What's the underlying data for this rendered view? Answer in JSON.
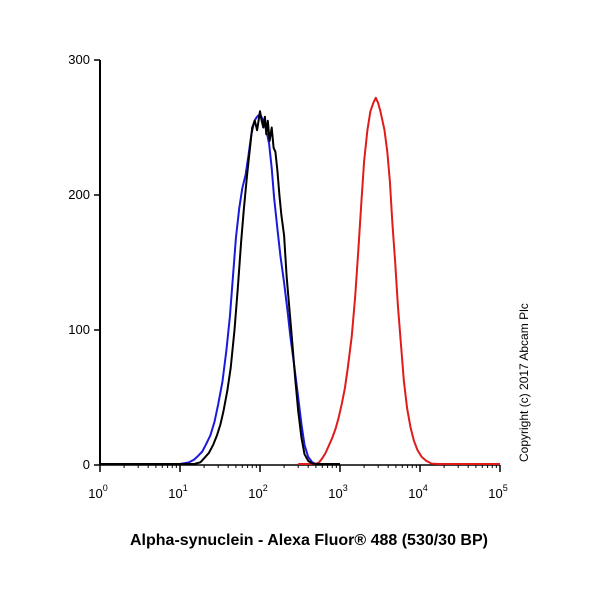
{
  "chart_data": {
    "type": "line",
    "title": "",
    "xlabel": "Alpha-synuclein - Alexa Fluor® 488 (530/30 BP)",
    "ylabel": "",
    "x_scale": "log",
    "xlim": [
      1,
      100000
    ],
    "ylim": [
      0,
      300
    ],
    "x_ticks": [
      {
        "value": 1,
        "base": "10",
        "exp": "0"
      },
      {
        "value": 10,
        "base": "10",
        "exp": "1"
      },
      {
        "value": 100,
        "base": "10",
        "exp": "2"
      },
      {
        "value": 1000,
        "base": "10",
        "exp": "3"
      },
      {
        "value": 10000,
        "base": "10",
        "exp": "4"
      },
      {
        "value": 100000,
        "base": "10",
        "exp": "5"
      }
    ],
    "y_ticks": [
      {
        "value": 0,
        "label": "0"
      },
      {
        "value": 100,
        "label": "100"
      },
      {
        "value": 200,
        "label": "200"
      },
      {
        "value": 300,
        "label": "300"
      }
    ],
    "grid": false,
    "annotation": "Copyright (c) 2017 Abcam Plc",
    "series": [
      {
        "color": "#1a1adb",
        "x": [
          1,
          10,
          13,
          15,
          17,
          19,
          21,
          24,
          27,
          30,
          34,
          38,
          42,
          46,
          50,
          55,
          60,
          66,
          72,
          78,
          85,
          92,
          100,
          110,
          120,
          130,
          140,
          150,
          165,
          180,
          200,
          220,
          240,
          270,
          300,
          330,
          360,
          400,
          450,
          500,
          1000
        ],
        "y": [
          0,
          0,
          2,
          4,
          7,
          10,
          15,
          22,
          32,
          45,
          62,
          85,
          110,
          140,
          168,
          190,
          205,
          215,
          230,
          245,
          255,
          258,
          260,
          255,
          248,
          238,
          220,
          198,
          175,
          155,
          135,
          115,
          95,
          72,
          50,
          30,
          15,
          6,
          2,
          0,
          0
        ]
      },
      {
        "color": "#000000",
        "x": [
          1,
          15,
          18,
          20,
          23,
          26,
          29,
          32,
          35,
          39,
          43,
          48,
          53,
          58,
          63,
          69,
          75,
          80,
          86,
          92,
          100,
          105,
          110,
          115,
          120,
          125,
          132,
          140,
          148,
          156,
          165,
          175,
          185,
          200,
          215,
          230,
          250,
          275,
          300,
          330,
          360,
          400,
          450,
          520,
          1000
        ],
        "y": [
          0,
          0,
          2,
          5,
          9,
          15,
          22,
          30,
          40,
          55,
          72,
          100,
          132,
          165,
          190,
          215,
          235,
          250,
          255,
          248,
          262,
          255,
          250,
          258,
          245,
          255,
          240,
          250,
          235,
          232,
          218,
          200,
          185,
          170,
          140,
          120,
          95,
          65,
          40,
          20,
          8,
          3,
          1,
          0,
          0
        ]
      },
      {
        "color": "#e01b1b",
        "x": [
          300,
          500,
          550,
          600,
          660,
          720,
          800,
          880,
          960,
          1050,
          1150,
          1250,
          1400,
          1550,
          1700,
          1850,
          2000,
          2200,
          2400,
          2600,
          2800,
          3000,
          3200,
          3400,
          3600,
          3900,
          4200,
          4500,
          4900,
          5300,
          5800,
          6300,
          6900,
          7600,
          8400,
          9300,
          10500,
          12000,
          14000,
          17000,
          100000
        ],
        "y": [
          0,
          0,
          2,
          5,
          9,
          14,
          20,
          27,
          35,
          45,
          57,
          72,
          95,
          125,
          160,
          195,
          225,
          248,
          262,
          268,
          272,
          268,
          262,
          255,
          248,
          232,
          210,
          180,
          150,
          118,
          88,
          62,
          42,
          28,
          18,
          11,
          6,
          3,
          1,
          0,
          0
        ]
      }
    ]
  }
}
